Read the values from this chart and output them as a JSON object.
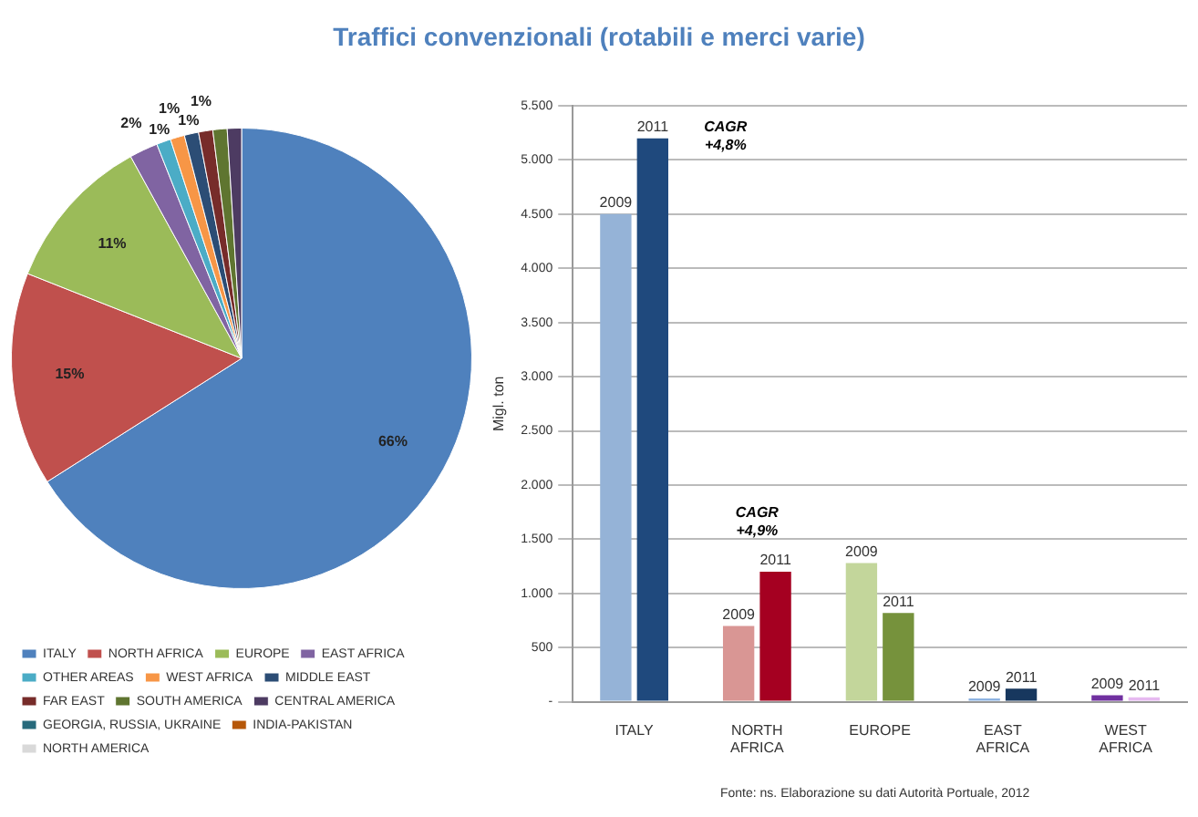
{
  "chart_data": [
    {
      "type": "pie",
      "title": "Traffici convenzionali   (rotabili e merci varie)",
      "legend": "bottom",
      "categories": [
        "ITALY",
        "NORTH AFRICA",
        "EUROPE",
        "EAST AFRICA",
        "OTHER AREAS",
        "WEST AFRICA",
        "MIDDLE EAST",
        "FAR EAST",
        "SOUTH AMERICA",
        "CENTRAL AMERICA",
        "GEORGIA, RUSSIA, UKRAINE",
        "INDIA-PAKISTAN",
        "NORTH AMERICA"
      ],
      "values": [
        66,
        15,
        11,
        2,
        1,
        1,
        1,
        1,
        1,
        1,
        0,
        0,
        0
      ],
      "value_labels": [
        "66%",
        "15%",
        "11%",
        "2%",
        "1%",
        "1%",
        "1%",
        "1%",
        null,
        null,
        null,
        null,
        null
      ],
      "colors": [
        "#4f81bd",
        "#c0504d",
        "#9bbb59",
        "#8064a2",
        "#4bacc6",
        "#f79646",
        "#2c4d75",
        "#772c2a",
        "#5f7530",
        "#4d3b62",
        "#276a7c",
        "#b65708",
        "#d9d9d9"
      ]
    },
    {
      "type": "bar",
      "ylabel": "Migl. ton",
      "categories": [
        "ITALY",
        "NORTH AFRICA",
        "EUROPE",
        "EAST AFRICA",
        "WEST AFRICA"
      ],
      "ylim": [
        0,
        5500
      ],
      "yticks": [
        {
          "value": 0,
          "label": "-"
        },
        {
          "value": 500,
          "label": "500"
        },
        {
          "value": 1000,
          "label": "1.000"
        },
        {
          "value": 1500,
          "label": "1.500"
        },
        {
          "value": 2000,
          "label": "2.000"
        },
        {
          "value": 2500,
          "label": "2.500"
        },
        {
          "value": 3000,
          "label": "3.000"
        },
        {
          "value": 3500,
          "label": "3.500"
        },
        {
          "value": 4000,
          "label": "4.000"
        },
        {
          "value": 4500,
          "label": "4.500"
        },
        {
          "value": 5000,
          "label": "5.000"
        },
        {
          "value": 5500,
          "label": "5.500"
        }
      ],
      "grid": "y",
      "legend": false,
      "series": [
        {
          "name": "2009",
          "values": [
            4500,
            700,
            1280,
            30,
            60
          ],
          "colors": [
            "#95b3d7",
            "#d99694",
            "#c3d69b",
            "#8db3e2",
            "#7030a0"
          ]
        },
        {
          "name": "2011",
          "values": [
            5200,
            1200,
            820,
            120,
            40
          ],
          "colors": [
            "#1f497d",
            "#a50021",
            "#76923c",
            "#17375e",
            "#e6b9f0"
          ]
        }
      ],
      "annotations": [
        "CAGR\n+4,8%",
        "CAGR\n+4,9%",
        "Fonte: ns. Elaborazione su dati Autorità Portuale, 2012"
      ]
    }
  ]
}
